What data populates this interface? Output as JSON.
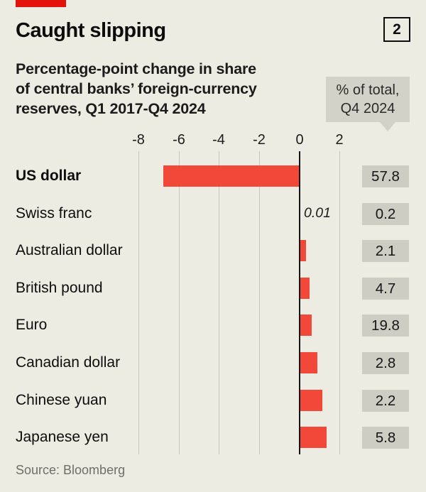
{
  "brand": {
    "tab_color": "#e3120b"
  },
  "header": {
    "title": "Caught slipping",
    "index_label": "2"
  },
  "subtitle": {
    "lines": [
      "Percentage-point change in share",
      "of central banks’ foreign-currency",
      "reserves, Q1 2017-Q4 2024"
    ],
    "full": "Percentage-point change in share of central banks’ foreign-currency reserves, Q1 2017-Q4 2024"
  },
  "callout": {
    "lines": [
      "% of total,",
      "Q4 2024"
    ]
  },
  "source": "Source: Bloomberg",
  "chart_data": {
    "type": "bar",
    "orientation": "horizontal",
    "title": "Caught slipping",
    "subtitle": "Percentage-point change in share of central banks’ foreign-currency reserves, Q1 2017-Q4 2024",
    "categories": [
      "US dollar",
      "Swiss franc",
      "Australian dollar",
      "British pound",
      "Euro",
      "Canadian dollar",
      "Chinese yuan",
      "Japanese yen"
    ],
    "series": [
      {
        "name": "Percentage-point change in share, Q1 2017-Q4 2024",
        "values": [
          -6.8,
          0.01,
          0.3,
          0.45,
          0.55,
          0.85,
          1.1,
          1.3
        ]
      },
      {
        "name": "% of total, Q4 2024",
        "values": [
          57.8,
          0.2,
          2.1,
          4.7,
          19.8,
          2.8,
          2.2,
          5.8
        ]
      }
    ],
    "annotations": [
      {
        "category": "Swiss franc",
        "text": "0.01"
      }
    ],
    "x_ticks": [
      -8,
      -6,
      -4,
      -2,
      0,
      2
    ],
    "xlim": [
      -8.5,
      2.5
    ],
    "grid": "vertical-gridlines-only",
    "zero_line": true,
    "legend_position": "none",
    "bar_color": "#f1483a",
    "badge_color": "#cdcdc3",
    "background_color": "#edece2"
  }
}
